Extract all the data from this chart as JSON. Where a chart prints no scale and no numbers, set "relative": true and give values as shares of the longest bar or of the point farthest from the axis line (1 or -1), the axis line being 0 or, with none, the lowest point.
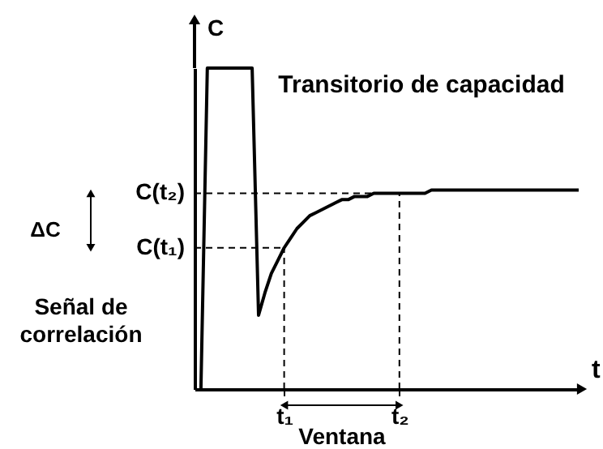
{
  "chart_data": {
    "type": "line",
    "relative": true,
    "xlabel": "t",
    "ylabel": "C",
    "categories": [
      null,
      null,
      null,
      null,
      null,
      null,
      null,
      null,
      null,
      null,
      null,
      null,
      null,
      null,
      "t₁",
      null,
      null,
      null,
      null,
      null,
      null,
      null,
      null,
      null,
      null,
      null,
      null,
      null,
      null,
      null,
      null,
      null,
      "t₂",
      null,
      null,
      null,
      null,
      null,
      null,
      null,
      null,
      null,
      null,
      null,
      null,
      null,
      null,
      null,
      null,
      null,
      null,
      null,
      null,
      null,
      null,
      null,
      null,
      null,
      null,
      null,
      null
    ],
    "series": [
      {
        "color": "#000000",
        "values": [
          null,
          0,
          1,
          1,
          1,
          1,
          1,
          1,
          1,
          1,
          0.23,
          0.3,
          0.36,
          0.4,
          0.44,
          0.47,
          0.5,
          0.52,
          0.54,
          0.55,
          0.56,
          0.57,
          0.58,
          0.59,
          0.59,
          0.6,
          0.6,
          0.6,
          0.61,
          0.61,
          0.61,
          0.61,
          0.61,
          0.61,
          0.61,
          0.61,
          0.61,
          0.62,
          0.62,
          0.62,
          0.62,
          0.62,
          0.62,
          0.62,
          0.62,
          0.62,
          0.62,
          0.62,
          0.62,
          0.62,
          0.62,
          0.62,
          0.62,
          0.62,
          0.62,
          0.62,
          0.62,
          0.62,
          0.62,
          0.62,
          0.62
        ]
      }
    ],
    "tick_labels": "x",
    "grid": false,
    "marker": "none",
    "line_style": "solid",
    "ref_lines": [
      {
        "axis": "y",
        "value": 0.44,
        "label": "C(t₁)",
        "line_style": "dashed"
      },
      {
        "axis": "y",
        "value": 0.61,
        "label": "C(t₂)",
        "line_style": "dashed"
      },
      {
        "axis": "x",
        "value": "t₁",
        "line_style": "dashed"
      },
      {
        "axis": "x",
        "value": "t₂",
        "line_style": "dashed"
      }
    ],
    "annotations": [
      "Transitorio de capacidad",
      "ΔC",
      "Señal de\ncorrelación",
      "Ventana"
    ]
  }
}
